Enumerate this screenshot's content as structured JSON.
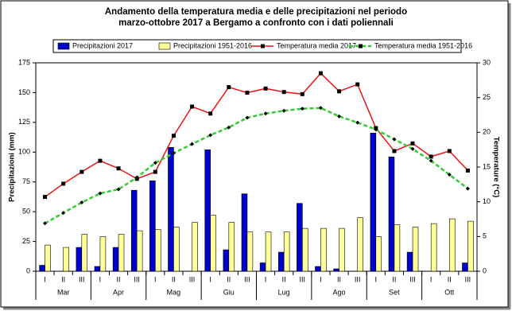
{
  "chart_data": {
    "type": "bar-line",
    "title": [
      "Andamento della temperatura media e delle precipitazioni nel periodo",
      "marzo-ottobre 2017 a Bergamo a confronto con i dati poliennali"
    ],
    "y_label": "Precipitazioni (mm)",
    "y2_label": "Temperature (°C)",
    "categories": [
      "I",
      "II",
      "III",
      "I",
      "II",
      "III",
      "I",
      "II",
      "III",
      "I",
      "II",
      "III",
      "I",
      "II",
      "III",
      "I",
      "II",
      "III",
      "I",
      "II",
      "III",
      "I",
      "II",
      "III"
    ],
    "months": [
      "Mar",
      "Apr",
      "Mag",
      "Giu",
      "Lug",
      "Ago",
      "Set",
      "Ott"
    ],
    "ylim": [
      0,
      175
    ],
    "yticks": [
      0,
      25,
      50,
      75,
      100,
      125,
      150,
      175
    ],
    "y2lim": [
      0,
      30
    ],
    "y2ticks": [
      0,
      5,
      10,
      15,
      20,
      25,
      30
    ],
    "series": [
      {
        "name": "Precipitazioni 2017",
        "type": "bar",
        "color": "#0000cc",
        "values": [
          5,
          0,
          20,
          4,
          20,
          68,
          76,
          104,
          0,
          102,
          18,
          65,
          7,
          16,
          57,
          4,
          2,
          0,
          116,
          96,
          16,
          0,
          0,
          7
        ]
      },
      {
        "name": "Precipitazioni 1951-2016",
        "type": "bar",
        "color": "#ffff99",
        "values": [
          22,
          20,
          31,
          29,
          31,
          34,
          35,
          37,
          41,
          47,
          41,
          33,
          33,
          33,
          36,
          36,
          36,
          45,
          29,
          39,
          37,
          40,
          44,
          42
        ]
      },
      {
        "name": "Temperatura media 2017",
        "type": "line",
        "axis": "y2",
        "color": "#ee1111",
        "values": [
          10.7,
          12.6,
          14.3,
          15.9,
          14.8,
          13.3,
          14.3,
          19.5,
          23.7,
          22.7,
          26.5,
          25.7,
          26.3,
          25.8,
          25.5,
          28.5,
          25.9,
          26.9,
          20.6,
          17.3,
          18.4,
          16.5,
          17.3,
          14.5
        ]
      },
      {
        "name": "Temperatura media 1951-2016",
        "type": "line",
        "axis": "y2",
        "color": "#33cc33",
        "dashed": true,
        "values": [
          6.9,
          8.4,
          9.9,
          11.2,
          11.8,
          13.5,
          15.6,
          17.0,
          18.3,
          19.6,
          20.7,
          22.1,
          22.7,
          23.1,
          23.4,
          23.5,
          22.3,
          21.4,
          20.4,
          19.0,
          17.6,
          15.9,
          13.9,
          11.9
        ]
      }
    ]
  }
}
